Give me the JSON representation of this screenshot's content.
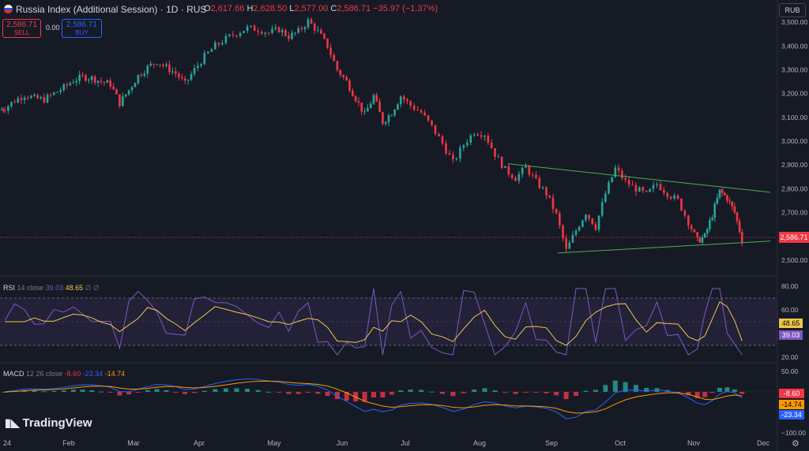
{
  "header": {
    "title": "Russia Index (Additional Session) · 1D · RUS",
    "ohlc": {
      "open_label": "O",
      "open": "2,617.66",
      "high_label": "H",
      "high": "2,628.50",
      "low_label": "L",
      "low": "2,577.00",
      "close_label": "C",
      "close": "2,586.71",
      "change": "−35.97 (−1.37%)"
    },
    "sell": {
      "price": "2,586.71",
      "label": "SELL"
    },
    "buy": {
      "price": "2,586.71",
      "label": "BUY"
    },
    "spread": "0.00",
    "currency": "RUB"
  },
  "colors": {
    "up": "#26a69a",
    "down": "#f23645",
    "rsi": "#7e57c2",
    "rsi_ma": "#f0c54a",
    "macd": "#2962ff",
    "signal": "#ff9800",
    "bg": "#161a25"
  },
  "price_axis": {
    "ticks": [
      "3,500.00",
      "3,400.00",
      "3,300.00",
      "3,200.00",
      "3,100.00",
      "3,000.00",
      "2,900.00",
      "2,800.00",
      "2,700.00",
      "2,600.00",
      "2,500.00"
    ],
    "current": "2,586.71"
  },
  "rsi": {
    "label": "RSI",
    "params": "14 close",
    "value": "39.03",
    "ma": "48.65",
    "extra": "∅ ∅",
    "ticks": [
      "80.00",
      "60.00",
      "40.00",
      "20.00"
    ],
    "badge_ma": "48.65",
    "badge_rsi": "39.03"
  },
  "macd": {
    "label": "MACD",
    "params": "12 26 close",
    "hist": "-8.60",
    "macd": "-23.34",
    "signal": "-14.74",
    "ticks": [
      "50.00",
      "0.00",
      "−50.00",
      "−100.00"
    ],
    "badge_hist": "-8.60",
    "badge_signal": "-14.74",
    "badge_macd": "-23.34"
  },
  "time_axis": [
    "24",
    "Feb",
    "Mar",
    "Apr",
    "May",
    "Jun",
    "Jul",
    "Aug",
    "Sep",
    "Oct",
    "Nov",
    "Dec"
  ],
  "branding": "TradingView",
  "chart_data": {
    "type": "candlestick",
    "title": "Russia Index (Additional Session) · 1D · RUS",
    "x_range": [
      "Jan",
      "Dec"
    ],
    "ylim": [
      2450,
      3560
    ],
    "close_path": [
      [
        "Jan",
        3140
      ],
      [
        "Jan",
        3170
      ],
      [
        "Jan",
        3195
      ],
      [
        "Jan",
        3180
      ],
      [
        "Jan",
        3175
      ],
      [
        "Jan",
        3200
      ],
      [
        "Jan",
        3225
      ],
      [
        "Feb",
        3255
      ],
      [
        "Feb",
        3270
      ],
      [
        "Feb",
        3265
      ],
      [
        "Feb",
        3250
      ],
      [
        "Feb",
        3240
      ],
      [
        "Feb",
        3160
      ],
      [
        "Feb",
        3215
      ],
      [
        "Mar",
        3275
      ],
      [
        "Mar",
        3310
      ],
      [
        "Mar",
        3335
      ],
      [
        "Mar",
        3310
      ],
      [
        "Mar",
        3285
      ],
      [
        "Mar",
        3240
      ],
      [
        "Mar",
        3300
      ],
      [
        "Apr",
        3355
      ],
      [
        "Apr",
        3400
      ],
      [
        "Apr",
        3430
      ],
      [
        "Apr",
        3455
      ],
      [
        "Apr",
        3475
      ],
      [
        "Apr",
        3470
      ],
      [
        "Apr",
        3455
      ],
      [
        "May",
        3470
      ],
      [
        "May",
        3440
      ],
      [
        "May",
        3460
      ],
      [
        "May",
        3505
      ],
      [
        "May",
        3460
      ],
      [
        "May",
        3400
      ],
      [
        "May",
        3300
      ],
      [
        "Jun",
        3250
      ],
      [
        "Jun",
        3180
      ],
      [
        "Jun",
        3110
      ],
      [
        "Jun",
        3190
      ],
      [
        "Jun",
        3080
      ],
      [
        "Jun",
        3120
      ],
      [
        "Jun",
        3190
      ],
      [
        "Jul",
        3150
      ],
      [
        "Jul",
        3120
      ],
      [
        "Jul",
        3060
      ],
      [
        "Jul",
        2990
      ],
      [
        "Jul",
        2910
      ],
      [
        "Jul",
        2985
      ],
      [
        "Jul",
        3040
      ],
      [
        "Aug",
        3030
      ],
      [
        "Aug",
        2945
      ],
      [
        "Aug",
        2880
      ],
      [
        "Aug",
        2845
      ],
      [
        "Aug",
        2890
      ],
      [
        "Aug",
        2830
      ],
      [
        "Aug",
        2780
      ],
      [
        "Sep",
        2690
      ],
      [
        "Sep",
        2540
      ],
      [
        "Sep",
        2625
      ],
      [
        "Sep",
        2700
      ],
      [
        "Sep",
        2640
      ],
      [
        "Sep",
        2780
      ],
      [
        "Sep",
        2885
      ],
      [
        "Oct",
        2830
      ],
      [
        "Oct",
        2800
      ],
      [
        "Oct",
        2775
      ],
      [
        "Oct",
        2820
      ],
      [
        "Oct",
        2780
      ],
      [
        "Oct",
        2750
      ],
      [
        "Oct",
        2660
      ],
      [
        "Nov",
        2580
      ],
      [
        "Nov",
        2600
      ],
      [
        "Nov",
        2690
      ],
      [
        "Nov",
        2790
      ],
      [
        "Nov",
        2760
      ],
      [
        "Nov",
        2700
      ],
      [
        "Nov",
        2587
      ]
    ],
    "trendlines": [
      {
        "from": [
          "Aug",
          2905
        ],
        "to": [
          "Dec",
          2785
        ]
      },
      {
        "from": [
          "Sep",
          2530
        ],
        "to": [
          "Dec",
          2580
        ]
      }
    ]
  }
}
